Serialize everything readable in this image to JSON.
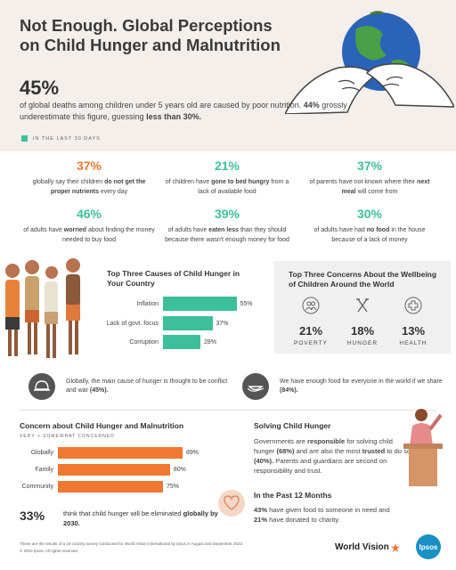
{
  "title": "Not Enough. Global Perceptions on Child Hunger and Malnutrition",
  "headline": {
    "pct": "45%",
    "desc_a": "of global deaths among children under 5 years old are caused by poor nutrition.",
    "desc_b": "44%",
    "desc_c": "grossly underestimate this figure, guessing",
    "desc_d": "less than 30%."
  },
  "legend": "IN THE LAST 30 DAYS",
  "stats": [
    {
      "num": "37%",
      "pre": "globally say their children",
      "bold": "do not get the proper nutrients",
      "post": "every day"
    },
    {
      "num": "21%",
      "pre": "of children have",
      "bold": "gone to bed hungry",
      "post": "from a lack of available food"
    },
    {
      "num": "37%",
      "pre": "of parents have not known where their",
      "bold": "next meal",
      "post": "will come from"
    },
    {
      "num": "46%",
      "pre": "of adults have",
      "bold": "worried",
      "post": "about finding the money needed to buy food"
    },
    {
      "num": "39%",
      "pre": "of adults have",
      "bold": "eaten less",
      "post": "than they should because there wasn't enough money for food"
    },
    {
      "num": "30%",
      "pre": "of adults have had",
      "bold": "no food",
      "post": "in the house because of a lack of money"
    }
  ],
  "causes": {
    "title": "Top Three Causes of Child Hunger in Your Country",
    "items": [
      {
        "label": "Inflation",
        "value": 55,
        "text": "55%"
      },
      {
        "label": "Lack of govt. focus",
        "value": 37,
        "text": "37%"
      },
      {
        "label": "Corruption",
        "value": 28,
        "text": "28%"
      }
    ]
  },
  "concerns": {
    "title": "Top Three Concerns About the Wellbeing of Children Around the World",
    "items": [
      {
        "pct": "21%",
        "label": "POVERTY",
        "icon": "people-icon"
      },
      {
        "pct": "18%",
        "label": "HUNGER",
        "icon": "fork-knife-icon"
      },
      {
        "pct": "13%",
        "label": "HEALTH",
        "icon": "health-cross-icon"
      }
    ]
  },
  "notes": {
    "conflict_a": "Globally, the main cause of hunger is thought to be conflict and war",
    "conflict_b": "(45%).",
    "food_a": "We have enough food for everyone in the world if we share",
    "food_b": "(84%)."
  },
  "concern_chart": {
    "title": "Concern about Child Hunger and Malnutrition",
    "subtitle": "VERY + SOMEWHAT CONCERNED",
    "items": [
      {
        "label": "Globally",
        "value": 89,
        "text": "89%"
      },
      {
        "label": "Family",
        "value": 80,
        "text": "80%"
      },
      {
        "label": "Community",
        "value": 75,
        "text": "75%"
      }
    ]
  },
  "eliminate": {
    "pct": "33%",
    "text_a": "think that child hunger will be eliminated",
    "text_b": "globally by 2030."
  },
  "solving": {
    "title": "Solving Child Hunger",
    "t1": "Governments are",
    "t2": "responsible",
    "t3": "for solving child hunger",
    "t4": "(68%)",
    "t5": "and are also the most",
    "t6": "trusted",
    "t7": "to do so",
    "t8": "(40%).",
    "t9": "Parents and guardians are second on responsibility and trust."
  },
  "past": {
    "title": "In the Past 12 Months",
    "l1a": "43%",
    "l1b": "have given food to someone in need and",
    "l2a": "21%",
    "l2b": "have donated to charity."
  },
  "footer": {
    "line1": "These are the results of a 16-country survey conducted for World Vision International by Ipsos in August and September 2023.",
    "line2": "© 2023 Ipsos. All rights reserved."
  },
  "logos": {
    "wv": "World Vision",
    "ipsos": "Ipsos"
  },
  "colors": {
    "orange": "#f07830",
    "green": "#3dbf9c"
  },
  "chart_data": [
    {
      "type": "bar",
      "title": "Top Three Causes of Child Hunger in Your Country",
      "categories": [
        "Inflation",
        "Lack of govt. focus",
        "Corruption"
      ],
      "values": [
        55,
        37,
        28
      ]
    },
    {
      "type": "bar",
      "title": "Concern about Child Hunger and Malnutrition",
      "subtitle": "VERY + SOMEWHAT CONCERNED",
      "categories": [
        "Globally",
        "Family",
        "Community"
      ],
      "values": [
        89,
        80,
        75
      ]
    }
  ]
}
